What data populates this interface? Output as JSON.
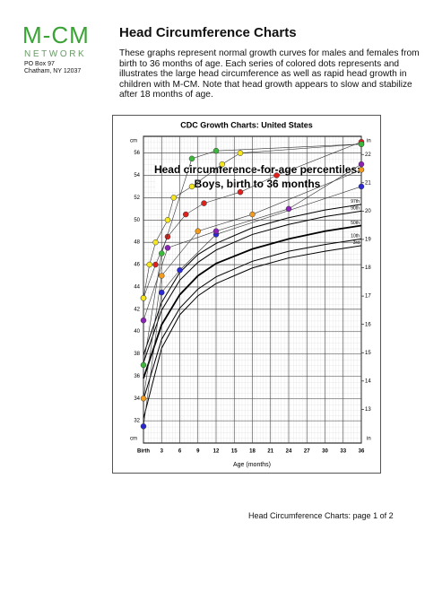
{
  "logo": {
    "name": "M-CM",
    "subtitle": "NETWORK",
    "address": [
      "PO Box 97",
      "Chatham, NY 12037"
    ]
  },
  "header": {
    "title": "Head Circumference Charts"
  },
  "intro": [
    "These graphs represent normal growth curves for males and females from",
    "birth to 36 months of age.  Each series of colored dots represents and",
    "illustrates the large head circumference as well as rapid head growth in",
    "children with M-CM.  Note that head growth appears to slow and stabilize",
    "after 18 months of age."
  ],
  "chart_data": {
    "type": "line",
    "title": "CDC Growth Charts: United States",
    "subtitle": [
      "Head circumference-for-age percentiles:",
      "Boys, birth to 36 months"
    ],
    "x_label": "Age (months)",
    "y_unit": "cm",
    "y2_unit": "in",
    "x": [
      0,
      3,
      6,
      9,
      12,
      18,
      24,
      30,
      36
    ],
    "xlim": [
      0,
      36
    ],
    "xticks": [
      {
        "value": 0,
        "label": "Birth"
      },
      3,
      6,
      9,
      12,
      15,
      18,
      21,
      24,
      27,
      30,
      33,
      36
    ],
    "ylim": [
      30,
      57.5
    ],
    "yticks": [
      32,
      34,
      36,
      38,
      40,
      42,
      44,
      46,
      48,
      50,
      52,
      54,
      56
    ],
    "y2lim": [
      11.81,
      22.64
    ],
    "y2ticks": [
      13,
      14,
      15,
      16,
      17,
      18,
      19,
      20,
      21,
      22
    ],
    "grid": true,
    "series": [
      {
        "name": "97th",
        "color": "#000000",
        "values": [
          37.9,
          42.6,
          45.3,
          46.9,
          47.9,
          49.3,
          50.2,
          50.9,
          51.4
        ]
      },
      {
        "name": "90th",
        "color": "#000000",
        "values": [
          37.2,
          41.9,
          44.6,
          46.2,
          47.3,
          48.7,
          49.6,
          50.3,
          50.8
        ]
      },
      {
        "name": "50th",
        "color": "#000000",
        "values": [
          35.8,
          40.6,
          43.3,
          45.0,
          46.1,
          47.4,
          48.3,
          49.0,
          49.5
        ]
      },
      {
        "name": "10th",
        "color": "#000000",
        "values": [
          33.9,
          39.3,
          42.1,
          43.8,
          44.9,
          46.3,
          47.2,
          47.8,
          48.3
        ]
      },
      {
        "name": "3rd",
        "color": "#000000",
        "values": [
          32.2,
          38.5,
          41.5,
          43.2,
          44.3,
          45.7,
          46.6,
          47.2,
          47.7
        ]
      }
    ],
    "patients": [
      {
        "color": "#e0201b",
        "x": [
          0,
          2,
          4,
          7,
          10,
          16,
          22,
          36
        ],
        "values": [
          43,
          46,
          48.5,
          50.5,
          51.5,
          52.5,
          54,
          57
        ]
      },
      {
        "color": "#f5e61c",
        "x": [
          0,
          1,
          2,
          4,
          5,
          8,
          13,
          16,
          36
        ],
        "values": [
          43,
          46,
          48,
          50,
          52,
          53,
          55,
          56,
          56.8
        ]
      },
      {
        "color": "#2a2ad0",
        "x": [
          0,
          3,
          6,
          12,
          36
        ],
        "values": [
          31.5,
          43.5,
          45.5,
          48.7,
          53
        ]
      },
      {
        "color": "#8a22b5",
        "x": [
          0,
          4,
          12,
          24,
          36
        ],
        "values": [
          41,
          47.5,
          49,
          51,
          55
        ]
      },
      {
        "color": "#f29a1e",
        "x": [
          0,
          3,
          9,
          18,
          36
        ],
        "values": [
          34,
          45,
          49,
          50.5,
          54.5
        ]
      },
      {
        "color": "#3cb93c",
        "x": [
          0,
          3,
          8,
          12,
          36
        ],
        "values": [
          37,
          47,
          55.5,
          56.2,
          56.8
        ]
      }
    ]
  },
  "footer": {
    "text": "Head Circumference Charts: page 1 of 2"
  }
}
